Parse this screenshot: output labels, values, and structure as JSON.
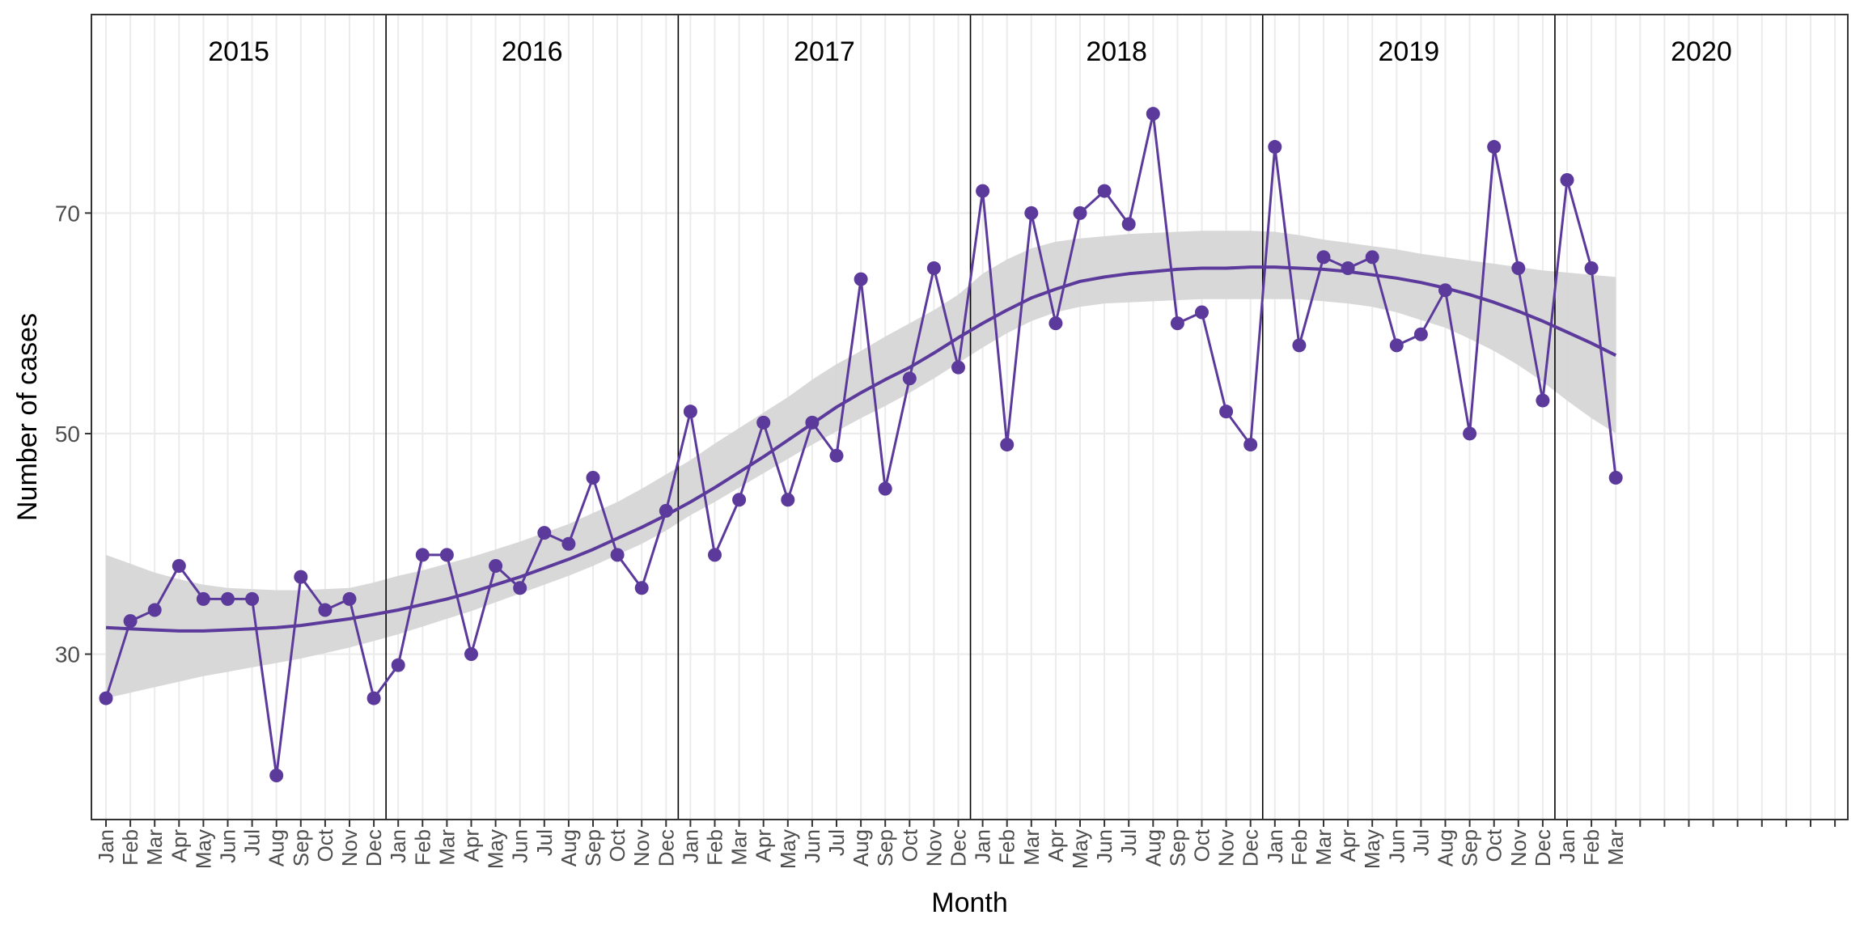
{
  "chart_data": {
    "type": "line",
    "title": "",
    "xlabel": "Month",
    "ylabel": "Number of cases",
    "ylim": [
      15,
      88
    ],
    "y_ticks": [
      30,
      50,
      70
    ],
    "grid": true,
    "years": [
      "2015",
      "2016",
      "2017",
      "2018",
      "2019",
      "2020"
    ],
    "month_labels": [
      "Jan",
      "Feb",
      "Mar",
      "Apr",
      "May",
      "Jun",
      "Jul",
      "Aug",
      "Sep",
      "Oct",
      "Nov",
      "Dec"
    ],
    "x_slots": 72,
    "series": [
      {
        "values": [
          26,
          33,
          34,
          38,
          35,
          35,
          35,
          19,
          37,
          34,
          35,
          26,
          29,
          39,
          39,
          30,
          38,
          36,
          41,
          40,
          46,
          39,
          36,
          43,
          52,
          39,
          44,
          51,
          44,
          51,
          48,
          64,
          45,
          55,
          65,
          56,
          72,
          49,
          70,
          60,
          70,
          72,
          69,
          79,
          60,
          61,
          52,
          49,
          76,
          58,
          66,
          65,
          66,
          58,
          59,
          63,
          50,
          76,
          65,
          53,
          73,
          65,
          46
        ],
        "color": "#5b3a9b"
      }
    ],
    "trend": {
      "values": [
        32.4,
        32.3,
        32.2,
        32.1,
        32.1,
        32.2,
        32.3,
        32.4,
        32.6,
        32.9,
        33.2,
        33.6,
        34.0,
        34.5,
        35.0,
        35.6,
        36.3,
        37.0,
        37.8,
        38.6,
        39.5,
        40.5,
        41.5,
        42.6,
        43.8,
        45.1,
        46.5,
        47.9,
        49.4,
        50.9,
        52.4,
        53.7,
        54.9,
        56.0,
        57.3,
        58.7,
        60.0,
        61.2,
        62.3,
        63.1,
        63.8,
        64.2,
        64.5,
        64.7,
        64.9,
        65.0,
        65.0,
        65.1,
        65.1,
        65.0,
        64.9,
        64.7,
        64.4,
        64.1,
        63.7,
        63.2,
        62.6,
        61.9,
        61.1,
        60.2,
        59.2,
        58.2,
        57.1
      ],
      "ci_lower": [
        26.0,
        26.5,
        27.0,
        27.5,
        28.0,
        28.4,
        28.8,
        29.2,
        29.6,
        30.1,
        30.6,
        31.2,
        31.8,
        32.5,
        33.2,
        33.9,
        34.7,
        35.5,
        36.3,
        37.1,
        38.0,
        39.0,
        40.0,
        41.2,
        42.6,
        43.8,
        45.1,
        46.4,
        47.7,
        49.0,
        50.2,
        51.4,
        52.5,
        53.7,
        55.0,
        56.4,
        57.8,
        59.1,
        60.2,
        61.0,
        61.5,
        61.8,
        61.9,
        62.0,
        62.1,
        62.2,
        62.2,
        62.2,
        62.2,
        62.2,
        62.0,
        61.8,
        61.5,
        61.0,
        60.3,
        59.6,
        58.6,
        57.5,
        56.2,
        54.7,
        53.0,
        51.4,
        50.0
      ],
      "ci_upper": [
        39.0,
        38.2,
        37.4,
        36.8,
        36.3,
        36.0,
        35.9,
        35.8,
        35.8,
        35.9,
        36.0,
        36.5,
        37.1,
        37.6,
        38.2,
        38.8,
        39.5,
        40.2,
        41.0,
        41.8,
        42.8,
        43.8,
        45.0,
        46.3,
        47.6,
        49.1,
        50.5,
        51.9,
        53.3,
        54.9,
        56.3,
        57.5,
        58.8,
        60.0,
        61.2,
        62.6,
        64.5,
        65.8,
        66.8,
        67.4,
        67.7,
        67.9,
        68.1,
        68.2,
        68.3,
        68.4,
        68.4,
        68.4,
        68.3,
        68.0,
        67.6,
        67.3,
        67.0,
        66.7,
        66.3,
        66.0,
        65.7,
        65.4,
        65.1,
        64.8,
        64.6,
        64.4,
        64.2
      ],
      "line_color": "#5b3a9b",
      "ribbon_color": "#d6d6d6"
    }
  }
}
